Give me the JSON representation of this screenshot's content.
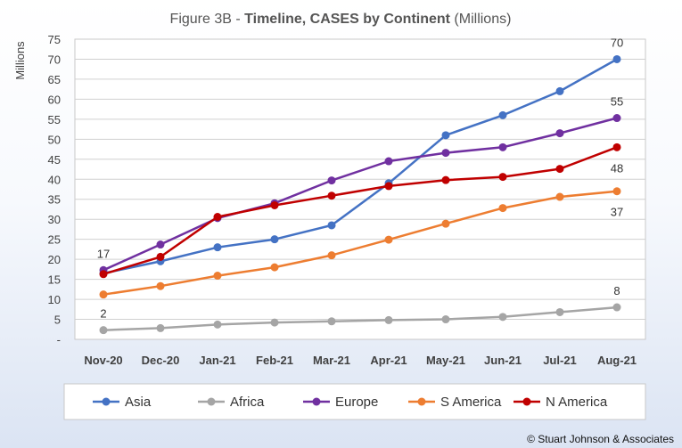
{
  "chart_data": {
    "type": "line",
    "title_prefix": "Figure 3B - ",
    "title_bold": "Timeline, CASES by Continent",
    "title_suffix": " (Millions)",
    "ylabel": "Millions",
    "xlabel": "",
    "categories": [
      "Nov-20",
      "Dec-20",
      "Jan-21",
      "Feb-21",
      "Mar-21",
      "Apr-21",
      "May-21",
      "Jun-21",
      "Jul-21",
      "Aug-21"
    ],
    "ylim": [
      0,
      75
    ],
    "yticks": [
      0,
      5,
      10,
      15,
      20,
      25,
      30,
      35,
      40,
      45,
      50,
      55,
      60,
      65,
      70,
      75
    ],
    "ytick_labels": [
      "-",
      "5",
      "10",
      "15",
      "20",
      "25",
      "30",
      "35",
      "40",
      "45",
      "50",
      "55",
      "60",
      "65",
      "70",
      "75"
    ],
    "grid": true,
    "legend_position": "bottom",
    "series": [
      {
        "name": "Asia",
        "color": "#4472C4",
        "values": [
          16.5,
          19.5,
          23,
          25,
          28.5,
          39,
          51,
          56,
          62,
          70
        ]
      },
      {
        "name": "Africa",
        "color": "#A5A5A5",
        "values": [
          2.3,
          2.8,
          3.7,
          4.2,
          4.5,
          4.8,
          5,
          5.6,
          6.8,
          8
        ]
      },
      {
        "name": "Europe",
        "color": "#7030A0",
        "values": [
          17.3,
          23.7,
          30.3,
          34,
          39.7,
          44.5,
          46.6,
          48,
          51.5,
          55.3
        ]
      },
      {
        "name": "S America",
        "color": "#ED7D31",
        "values": [
          11.2,
          13.3,
          15.9,
          18,
          21,
          24.9,
          28.9,
          32.8,
          35.6,
          37
        ]
      },
      {
        "name": "N America",
        "color": "#C00000",
        "values": [
          16.3,
          20.6,
          30.6,
          33.5,
          35.9,
          38.3,
          39.8,
          40.6,
          42.6,
          48
        ]
      }
    ],
    "data_labels": [
      {
        "series": "Europe",
        "index": 0,
        "text": "17"
      },
      {
        "series": "Africa",
        "index": 0,
        "text": "2"
      },
      {
        "series": "Asia",
        "index": 9,
        "text": "70"
      },
      {
        "series": "Europe",
        "index": 9,
        "text": "55"
      },
      {
        "series": "N America",
        "index": 9,
        "text": "48"
      },
      {
        "series": "S America",
        "index": 9,
        "text": "37"
      },
      {
        "series": "Africa",
        "index": 9,
        "text": "8"
      }
    ]
  },
  "footer": {
    "copyright": "© Stuart Johnson & Associates"
  }
}
